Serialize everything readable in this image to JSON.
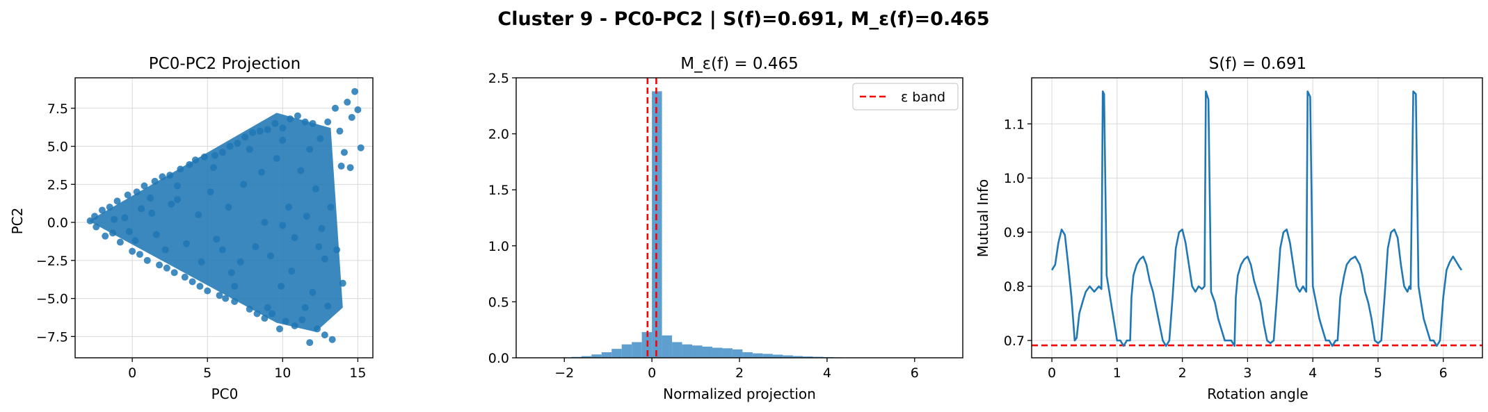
{
  "suptitle": "Cluster 9 - PC0-PC2 | S(f)=0.691, M_ε(f)=0.465",
  "colors": {
    "primary": "#1f77b4",
    "hist": "#5f9fcf",
    "reference": "#ff0000",
    "grid": "#d9d9d9"
  },
  "chart_data": [
    {
      "type": "scatter",
      "title": "PC0-PC2 Projection",
      "xlabel": "PC0",
      "ylabel": "PC2",
      "xlim": [
        -3.8,
        16.0
      ],
      "ylim": [
        -8.9,
        9.5
      ],
      "xticks": [
        0,
        5,
        10,
        15
      ],
      "xtick_labels": [
        "0",
        "5",
        "10",
        "15"
      ],
      "yticks": [
        -7.5,
        -5.0,
        -2.5,
        0.0,
        2.5,
        5.0,
        7.5
      ],
      "ytick_labels": [
        "−7.5",
        "−5.0",
        "−2.5",
        "0.0",
        "2.5",
        "5.0",
        "7.5"
      ],
      "grid": true,
      "points": [
        [
          -2.8,
          0.1
        ],
        [
          -2.5,
          0.4
        ],
        [
          -2.4,
          -0.3
        ],
        [
          -2.0,
          0.8
        ],
        [
          -1.8,
          -0.9
        ],
        [
          -1.5,
          1.0
        ],
        [
          -1.3,
          -0.7
        ],
        [
          -1.0,
          1.4
        ],
        [
          -0.8,
          -1.3
        ],
        [
          -0.5,
          0.3
        ],
        [
          -0.3,
          1.8
        ],
        [
          0.0,
          -1.9
        ],
        [
          0.3,
          2.0
        ],
        [
          0.5,
          -2.1
        ],
        [
          0.8,
          2.4
        ],
        [
          1.0,
          -2.5
        ],
        [
          1.3,
          0.6
        ],
        [
          1.5,
          2.7
        ],
        [
          1.8,
          -2.8
        ],
        [
          2.0,
          3.0
        ],
        [
          2.3,
          -3.0
        ],
        [
          2.5,
          3.1
        ],
        [
          2.8,
          -3.3
        ],
        [
          3.0,
          1.5
        ],
        [
          3.2,
          3.5
        ],
        [
          3.5,
          -3.6
        ],
        [
          3.8,
          3.8
        ],
        [
          4.0,
          -3.9
        ],
        [
          4.2,
          4.1
        ],
        [
          4.5,
          -4.2
        ],
        [
          4.8,
          4.3
        ],
        [
          5.0,
          -4.5
        ],
        [
          5.2,
          2.0
        ],
        [
          5.5,
          4.4
        ],
        [
          5.8,
          -4.8
        ],
        [
          6.0,
          4.6
        ],
        [
          6.2,
          -5.0
        ],
        [
          6.5,
          5.0
        ],
        [
          6.8,
          -5.2
        ],
        [
          7.0,
          5.2
        ],
        [
          7.2,
          -2.6
        ],
        [
          7.5,
          5.6
        ],
        [
          7.8,
          -5.7
        ],
        [
          8.0,
          5.9
        ],
        [
          8.3,
          -6.0
        ],
        [
          8.5,
          6.0
        ],
        [
          8.8,
          -6.3
        ],
        [
          9.0,
          6.1
        ],
        [
          9.3,
          -6.0
        ],
        [
          9.5,
          6.5
        ],
        [
          9.8,
          -7.0
        ],
        [
          10.0,
          6.2
        ],
        [
          10.2,
          -6.5
        ],
        [
          10.5,
          6.8
        ],
        [
          10.8,
          -6.8
        ],
        [
          11.0,
          7.0
        ],
        [
          11.3,
          -6.4
        ],
        [
          11.5,
          6.6
        ],
        [
          11.8,
          -7.9
        ],
        [
          12.0,
          6.5
        ],
        [
          12.3,
          -7.0
        ],
        [
          12.5,
          5.5
        ],
        [
          12.8,
          -7.4
        ],
        [
          13.0,
          6.6
        ],
        [
          13.3,
          -7.7
        ],
        [
          13.5,
          7.5
        ],
        [
          13.8,
          6.0
        ],
        [
          14.0,
          -4.0
        ],
        [
          14.3,
          7.9
        ],
        [
          14.5,
          3.6
        ],
        [
          14.8,
          8.6
        ],
        [
          15.0,
          7.4
        ],
        [
          15.2,
          4.9
        ],
        [
          14.6,
          6.9
        ],
        [
          13.9,
          3.7
        ],
        [
          11.5,
          -5.6
        ],
        [
          12.0,
          -4.6
        ],
        [
          12.8,
          -2.4
        ],
        [
          10.6,
          -3.2
        ],
        [
          9.6,
          4.2
        ],
        [
          8.6,
          3.3
        ],
        [
          9.9,
          -4.2
        ],
        [
          6.6,
          -3.3
        ],
        [
          7.4,
          2.5
        ],
        [
          11.2,
          3.4
        ],
        [
          12.6,
          -0.4
        ],
        [
          13.2,
          1.0
        ],
        [
          10.4,
          1.0
        ],
        [
          8.2,
          -1.6
        ],
        [
          5.6,
          -1.1
        ],
        [
          4.4,
          0.5
        ],
        [
          3.6,
          -1.4
        ],
        [
          2.6,
          1.2
        ],
        [
          1.6,
          -0.8
        ],
        [
          0.6,
          0.9
        ],
        [
          -0.2,
          -0.6
        ],
        [
          6.4,
          1.0
        ],
        [
          9.2,
          -2.2
        ],
        [
          10.8,
          -1.0
        ],
        [
          12.2,
          2.2
        ],
        [
          13.6,
          -1.8
        ],
        [
          11.8,
          4.8
        ],
        [
          9.0,
          -5.6
        ],
        [
          7.8,
          4.8
        ],
        [
          6.8,
          -4.2
        ],
        [
          14.1,
          4.6
        ],
        [
          13.0,
          -5.5
        ],
        [
          10.0,
          5.4
        ],
        [
          3.0,
          2.4
        ],
        [
          4.6,
          -2.6
        ],
        [
          5.4,
          3.6
        ],
        [
          6.0,
          -1.8
        ],
        [
          8.8,
          0.0
        ],
        [
          10.0,
          -0.2
        ],
        [
          11.6,
          0.4
        ],
        [
          12.4,
          -1.6
        ],
        [
          2.2,
          -1.8
        ],
        [
          1.2,
          1.6
        ],
        [
          0.2,
          -1.2
        ],
        [
          -1.2,
          0.2
        ]
      ],
      "series": [
        {
          "values": "points"
        }
      ]
    },
    {
      "type": "bar",
      "title": "M_ε(f) = 0.465",
      "xlabel": "Normalized projection",
      "ylabel": "",
      "xlim": [
        -3.1,
        7.1
      ],
      "ylim": [
        0.0,
        2.5
      ],
      "xticks": [
        -2,
        0,
        2,
        4,
        6
      ],
      "xtick_labels": [
        "−2",
        "0",
        "2",
        "4",
        "6"
      ],
      "yticks": [
        0.0,
        0.5,
        1.0,
        1.5,
        2.0,
        2.5
      ],
      "ytick_labels": [
        "0.0",
        "0.5",
        "1.0",
        "1.5",
        "2.0",
        "2.5"
      ],
      "grid": false,
      "bin_width": 0.23,
      "bins": [
        {
          "x0": -2.3,
          "h": 0.002
        },
        {
          "x0": -2.07,
          "h": 0.004
        },
        {
          "x0": -1.84,
          "h": 0.008
        },
        {
          "x0": -1.61,
          "h": 0.015
        },
        {
          "x0": -1.38,
          "h": 0.03
        },
        {
          "x0": -1.15,
          "h": 0.05
        },
        {
          "x0": -0.92,
          "h": 0.08
        },
        {
          "x0": -0.69,
          "h": 0.12
        },
        {
          "x0": -0.46,
          "h": 0.14
        },
        {
          "x0": -0.23,
          "h": 0.23
        },
        {
          "x0": 0.0,
          "h": 2.38
        },
        {
          "x0": 0.23,
          "h": 0.2
        },
        {
          "x0": 0.46,
          "h": 0.14
        },
        {
          "x0": 0.69,
          "h": 0.12
        },
        {
          "x0": 0.92,
          "h": 0.11
        },
        {
          "x0": 1.15,
          "h": 0.1
        },
        {
          "x0": 1.38,
          "h": 0.09
        },
        {
          "x0": 1.61,
          "h": 0.085
        },
        {
          "x0": 1.84,
          "h": 0.075
        },
        {
          "x0": 2.07,
          "h": 0.05
        },
        {
          "x0": 2.3,
          "h": 0.04
        },
        {
          "x0": 2.53,
          "h": 0.035
        },
        {
          "x0": 2.76,
          "h": 0.028
        },
        {
          "x0": 2.99,
          "h": 0.022
        },
        {
          "x0": 3.22,
          "h": 0.016
        },
        {
          "x0": 3.45,
          "h": 0.012
        },
        {
          "x0": 3.68,
          "h": 0.009
        },
        {
          "x0": 3.91,
          "h": 0.006
        },
        {
          "x0": 4.14,
          "h": 0.004
        },
        {
          "x0": 4.37,
          "h": 0.003
        },
        {
          "x0": 4.6,
          "h": 0.002
        },
        {
          "x0": 4.83,
          "h": 0.001
        }
      ],
      "epsilon_lines": [
        -0.1,
        0.1
      ],
      "legend": {
        "label": "ε band",
        "position": "upper right"
      }
    },
    {
      "type": "line",
      "title": "S(f) = 0.691",
      "xlabel": "Rotation angle",
      "ylabel": "Mutual Info",
      "xlim": [
        -0.31,
        6.6
      ],
      "ylim": [
        0.668,
        1.185
      ],
      "xticks": [
        0,
        1,
        2,
        3,
        4,
        5,
        6
      ],
      "xtick_labels": [
        "0",
        "1",
        "2",
        "3",
        "4",
        "5",
        "6"
      ],
      "yticks": [
        0.7,
        0.8,
        0.9,
        1.0,
        1.1
      ],
      "ytick_labels": [
        "0.7",
        "0.8",
        "0.9",
        "1.0",
        "1.1"
      ],
      "grid": true,
      "threshold": 0.691,
      "x": [
        0.0,
        0.05,
        0.1,
        0.15,
        0.2,
        0.25,
        0.3,
        0.35,
        0.38,
        0.42,
        0.48,
        0.52,
        0.58,
        0.65,
        0.72,
        0.76,
        0.78,
        0.8,
        0.84,
        0.88,
        0.92,
        0.96,
        1.0,
        1.05,
        1.1,
        1.15,
        1.2,
        1.22,
        1.25,
        1.3,
        1.35,
        1.4,
        1.45,
        1.5,
        1.55,
        1.6,
        1.65,
        1.7,
        1.75,
        1.8,
        1.85,
        1.9,
        1.95,
        2.0,
        2.05,
        2.1,
        2.15,
        2.2,
        2.25,
        2.3,
        2.34,
        2.36,
        2.4,
        2.44,
        2.5,
        2.55,
        2.6,
        2.65,
        2.7,
        2.75,
        2.8,
        2.82,
        2.85,
        2.9,
        2.95,
        3.0,
        3.05,
        3.1,
        3.15,
        3.2,
        3.25,
        3.3,
        3.35,
        3.4,
        3.45,
        3.5,
        3.55,
        3.6,
        3.65,
        3.7,
        3.75,
        3.8,
        3.85,
        3.9,
        3.92,
        3.96,
        4.0,
        4.05,
        4.1,
        4.15,
        4.2,
        4.25,
        4.3,
        4.35,
        4.38,
        4.42,
        4.48,
        4.52,
        4.58,
        4.65,
        4.72,
        4.76,
        4.8,
        4.85,
        4.9,
        4.95,
        5.0,
        5.05,
        5.1,
        5.15,
        5.2,
        5.25,
        5.3,
        5.35,
        5.4,
        5.45,
        5.48,
        5.5,
        5.54,
        5.58,
        5.62,
        5.66,
        5.7,
        5.75,
        5.8,
        5.85,
        5.9,
        5.95,
        6.0,
        6.05,
        6.1,
        6.15,
        6.2,
        6.25,
        6.28
      ],
      "y": [
        0.83,
        0.84,
        0.88,
        0.905,
        0.895,
        0.84,
        0.78,
        0.7,
        0.705,
        0.75,
        0.775,
        0.79,
        0.8,
        0.79,
        0.8,
        0.795,
        1.16,
        1.155,
        0.82,
        0.79,
        0.76,
        0.73,
        0.7,
        0.7,
        0.69,
        0.7,
        0.7,
        0.78,
        0.82,
        0.84,
        0.85,
        0.855,
        0.84,
        0.81,
        0.79,
        0.76,
        0.73,
        0.7,
        0.69,
        0.7,
        0.78,
        0.87,
        0.9,
        0.905,
        0.88,
        0.84,
        0.8,
        0.79,
        0.8,
        0.795,
        0.8,
        1.16,
        1.145,
        0.79,
        0.77,
        0.74,
        0.72,
        0.7,
        0.7,
        0.7,
        0.69,
        0.78,
        0.82,
        0.84,
        0.85,
        0.855,
        0.84,
        0.81,
        0.79,
        0.77,
        0.73,
        0.7,
        0.695,
        0.7,
        0.78,
        0.87,
        0.9,
        0.905,
        0.88,
        0.84,
        0.8,
        0.79,
        0.8,
        0.79,
        1.16,
        1.15,
        0.8,
        0.77,
        0.74,
        0.72,
        0.7,
        0.7,
        0.69,
        0.7,
        0.7,
        0.78,
        0.82,
        0.84,
        0.85,
        0.855,
        0.84,
        0.82,
        0.79,
        0.77,
        0.74,
        0.7,
        0.695,
        0.7,
        0.78,
        0.87,
        0.9,
        0.905,
        0.89,
        0.84,
        0.8,
        0.79,
        0.8,
        0.795,
        1.16,
        1.155,
        0.8,
        0.77,
        0.74,
        0.72,
        0.7,
        0.7,
        0.69,
        0.7,
        0.78,
        0.83,
        0.845,
        0.855,
        0.845,
        0.835,
        0.83
      ]
    }
  ]
}
